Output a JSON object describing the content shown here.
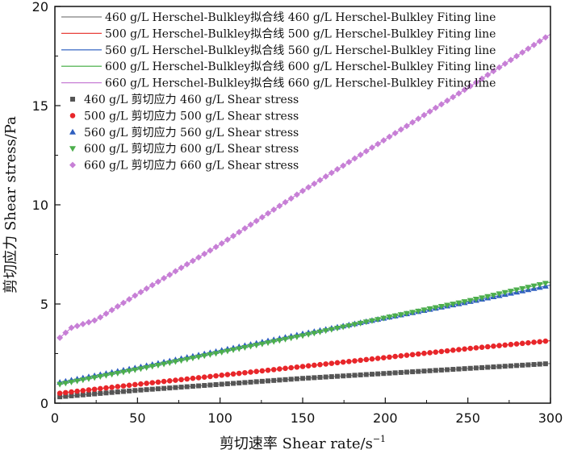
{
  "chart_data": {
    "type": "scatter",
    "xlabel": "剪切速率 Shear rate/s",
    "xlabel_exponent": "−1",
    "ylabel": "剪切应力 Shear stress/Pa",
    "xlim": [
      0,
      300
    ],
    "ylim": [
      0,
      20
    ],
    "x_ticks": [
      "0",
      "50",
      "100",
      "150",
      "200",
      "250",
      "300"
    ],
    "y_ticks": [
      "0",
      "5",
      "10",
      "15",
      "20"
    ],
    "grid": false,
    "legend_position": "top-left",
    "fit_lines": [
      {
        "name": "460 g/L Herschel-Bulkley拟合线 460 g/L Herschel-Bulkley Fiting line",
        "color": "#7f7f7f"
      },
      {
        "name": "500 g/L Herschel-Bulkley拟合线 500 g/L Herschel-Bulkley Fiting line",
        "color": "#e8413b"
      },
      {
        "name": "560 g/L Herschel-Bulkley拟合线 560 g/L Herschel-Bulkley Fiting line",
        "color": "#4a74c9"
      },
      {
        "name": "600 g/L Herschel-Bulkley拟合线 600 g/L Herschel-Bulkley Fiting line",
        "color": "#5cb85c"
      },
      {
        "name": "660 g/L Herschel-Bulkley拟合线 660 g/L Herschel-Bulkley Fiting line",
        "color": "#c77fd6"
      }
    ],
    "series": [
      {
        "name": "460 g/L 剪切应力 460 g/L Shear stress",
        "color": "#555555",
        "marker": "square",
        "x": [
          3,
          50,
          100,
          150,
          200,
          250,
          300
        ],
        "y": [
          0.32,
          0.65,
          0.95,
          1.25,
          1.5,
          1.75,
          2.0
        ]
      },
      {
        "name": "500 g/L 剪切应力 500 g/L Shear stress",
        "color": "#e8262a",
        "marker": "circle",
        "x": [
          3,
          50,
          100,
          150,
          200,
          250,
          300
        ],
        "y": [
          0.5,
          0.95,
          1.4,
          1.85,
          2.3,
          2.75,
          3.15
        ]
      },
      {
        "name": "560 g/L 剪切应力 560 g/L Shear stress",
        "color": "#2f5fbf",
        "marker": "triangle-up",
        "x": [
          3,
          50,
          100,
          150,
          200,
          250,
          300
        ],
        "y": [
          1.05,
          1.8,
          2.65,
          3.5,
          4.3,
          5.1,
          5.95
        ]
      },
      {
        "name": "600 g/L 剪切应力 600 g/L Shear stress",
        "color": "#4cae4c",
        "marker": "triangle-down",
        "x": [
          3,
          50,
          100,
          150,
          200,
          250,
          300
        ],
        "y": [
          0.95,
          1.7,
          2.55,
          3.4,
          4.3,
          5.15,
          6.1
        ]
      },
      {
        "name": "660 g/L 剪切应力 660 g/L Shear stress",
        "color": "#c77fd6",
        "marker": "diamond",
        "x": [
          3,
          10,
          25,
          50,
          100,
          150,
          200,
          250,
          300
        ],
        "y": [
          3.3,
          3.8,
          4.2,
          5.5,
          8.0,
          10.7,
          13.3,
          15.9,
          18.6
        ]
      }
    ]
  }
}
